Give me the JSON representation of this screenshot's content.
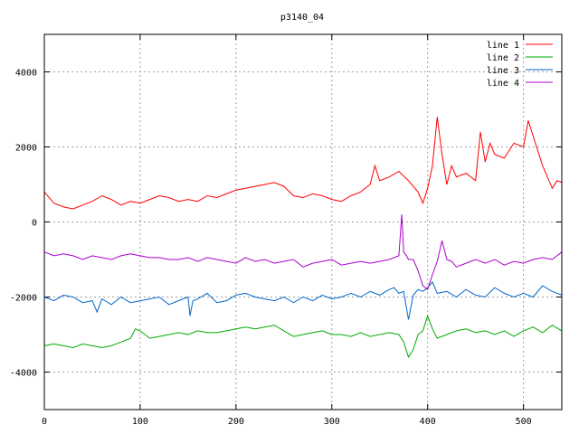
{
  "chart_data": {
    "type": "line",
    "title": "p3140_04",
    "xlabel": "",
    "ylabel": "",
    "xlim": [
      0,
      540
    ],
    "ylim": [
      -5000,
      5000
    ],
    "x_ticks": [
      0,
      100,
      200,
      300,
      400,
      500
    ],
    "y_ticks": [
      -4000,
      -2000,
      0,
      2000,
      4000
    ],
    "grid": true,
    "legend_position": "top-right",
    "series": [
      {
        "name": "line 1",
        "color": "#ff0000",
        "x": [
          0,
          10,
          20,
          30,
          40,
          50,
          60,
          70,
          80,
          90,
          100,
          110,
          120,
          130,
          140,
          150,
          160,
          170,
          180,
          190,
          200,
          210,
          220,
          230,
          240,
          250,
          260,
          270,
          280,
          290,
          300,
          310,
          320,
          330,
          340,
          345,
          350,
          360,
          370,
          380,
          390,
          395,
          400,
          405,
          410,
          415,
          420,
          425,
          430,
          440,
          450,
          455,
          460,
          465,
          470,
          480,
          490,
          500,
          505,
          510,
          515,
          520,
          525,
          530,
          535,
          540
        ],
        "y": [
          800,
          500,
          400,
          350,
          450,
          550,
          700,
          600,
          450,
          550,
          500,
          600,
          700,
          650,
          550,
          600,
          550,
          700,
          650,
          750,
          850,
          900,
          950,
          1000,
          1050,
          950,
          700,
          650,
          750,
          700,
          600,
          550,
          700,
          800,
          1000,
          1500,
          1100,
          1200,
          1350,
          1100,
          800,
          500,
          900,
          1500,
          2800,
          1800,
          1000,
          1500,
          1200,
          1300,
          1100,
          2400,
          1600,
          2100,
          1800,
          1700,
          2100,
          2000,
          2700,
          2300,
          1900,
          1500,
          1200,
          900,
          1100,
          1050
        ]
      },
      {
        "name": "line 2",
        "color": "#00aa00",
        "x": [
          0,
          10,
          20,
          30,
          40,
          50,
          60,
          70,
          80,
          90,
          95,
          100,
          110,
          120,
          130,
          140,
          150,
          160,
          170,
          180,
          190,
          200,
          210,
          220,
          230,
          240,
          250,
          260,
          270,
          280,
          290,
          300,
          310,
          320,
          330,
          340,
          350,
          360,
          370,
          375,
          380,
          385,
          390,
          395,
          400,
          405,
          410,
          420,
          430,
          440,
          450,
          460,
          470,
          480,
          490,
          500,
          510,
          520,
          530,
          540
        ],
        "y": [
          -3300,
          -3250,
          -3300,
          -3350,
          -3250,
          -3300,
          -3350,
          -3300,
          -3200,
          -3100,
          -2850,
          -2900,
          -3100,
          -3050,
          -3000,
          -2950,
          -3000,
          -2900,
          -2950,
          -2950,
          -2900,
          -2850,
          -2800,
          -2850,
          -2800,
          -2750,
          -2900,
          -3050,
          -3000,
          -2950,
          -2900,
          -3000,
          -3000,
          -3050,
          -2950,
          -3050,
          -3000,
          -2950,
          -3000,
          -3200,
          -3600,
          -3400,
          -3000,
          -2900,
          -2500,
          -2850,
          -3100,
          -3000,
          -2900,
          -2850,
          -2950,
          -2900,
          -3000,
          -2900,
          -3050,
          -2900,
          -2800,
          -2950,
          -2750,
          -2900
        ]
      },
      {
        "name": "line 3",
        "color": "#0066cc",
        "x": [
          0,
          10,
          20,
          30,
          40,
          50,
          55,
          60,
          70,
          80,
          90,
          100,
          110,
          120,
          130,
          140,
          150,
          152,
          155,
          160,
          170,
          180,
          190,
          200,
          210,
          220,
          230,
          240,
          250,
          260,
          270,
          280,
          290,
          300,
          310,
          320,
          330,
          340,
          350,
          360,
          365,
          370,
          375,
          380,
          385,
          390,
          395,
          400,
          405,
          410,
          420,
          430,
          440,
          450,
          460,
          470,
          480,
          490,
          500,
          510,
          520,
          530,
          540
        ],
        "y": [
          -2000,
          -2100,
          -1950,
          -2000,
          -2150,
          -2100,
          -2400,
          -2050,
          -2200,
          -2000,
          -2150,
          -2100,
          -2050,
          -2000,
          -2200,
          -2100,
          -2000,
          -2500,
          -2100,
          -2050,
          -1900,
          -2150,
          -2100,
          -1950,
          -1900,
          -2000,
          -2050,
          -2100,
          -2000,
          -2150,
          -2000,
          -2100,
          -1950,
          -2050,
          -2000,
          -1900,
          -2000,
          -1850,
          -1950,
          -1800,
          -1750,
          -1900,
          -1850,
          -2600,
          -1950,
          -1800,
          -1850,
          -1750,
          -1600,
          -1900,
          -1850,
          -2000,
          -1800,
          -1950,
          -2000,
          -1750,
          -1900,
          -2000,
          -1900,
          -2000,
          -1700,
          -1850,
          -1950
        ]
      },
      {
        "name": "line 4",
        "color": "#aa00cc",
        "x": [
          0,
          10,
          20,
          30,
          40,
          50,
          60,
          70,
          80,
          90,
          100,
          110,
          120,
          130,
          140,
          150,
          160,
          170,
          180,
          190,
          200,
          210,
          220,
          230,
          240,
          250,
          260,
          270,
          280,
          290,
          300,
          310,
          320,
          330,
          340,
          350,
          360,
          370,
          373,
          375,
          378,
          380,
          385,
          390,
          395,
          400,
          405,
          410,
          415,
          420,
          425,
          430,
          440,
          450,
          460,
          470,
          480,
          490,
          500,
          510,
          520,
          530,
          540
        ],
        "y": [
          -800,
          -900,
          -850,
          -900,
          -1000,
          -900,
          -950,
          -1000,
          -900,
          -850,
          -900,
          -950,
          -950,
          -1000,
          -1000,
          -950,
          -1050,
          -950,
          -1000,
          -1050,
          -1100,
          -950,
          -1050,
          -1000,
          -1100,
          -1050,
          -1000,
          -1200,
          -1100,
          -1050,
          -1000,
          -1150,
          -1100,
          -1050,
          -1100,
          -1050,
          -1000,
          -900,
          200,
          -800,
          -900,
          -1000,
          -1000,
          -1300,
          -1700,
          -1800,
          -1400,
          -1050,
          -500,
          -1000,
          -1050,
          -1200,
          -1100,
          -1000,
          -1100,
          -1000,
          -1150,
          -1050,
          -1100,
          -1000,
          -950,
          -1000,
          -800
        ]
      }
    ]
  }
}
